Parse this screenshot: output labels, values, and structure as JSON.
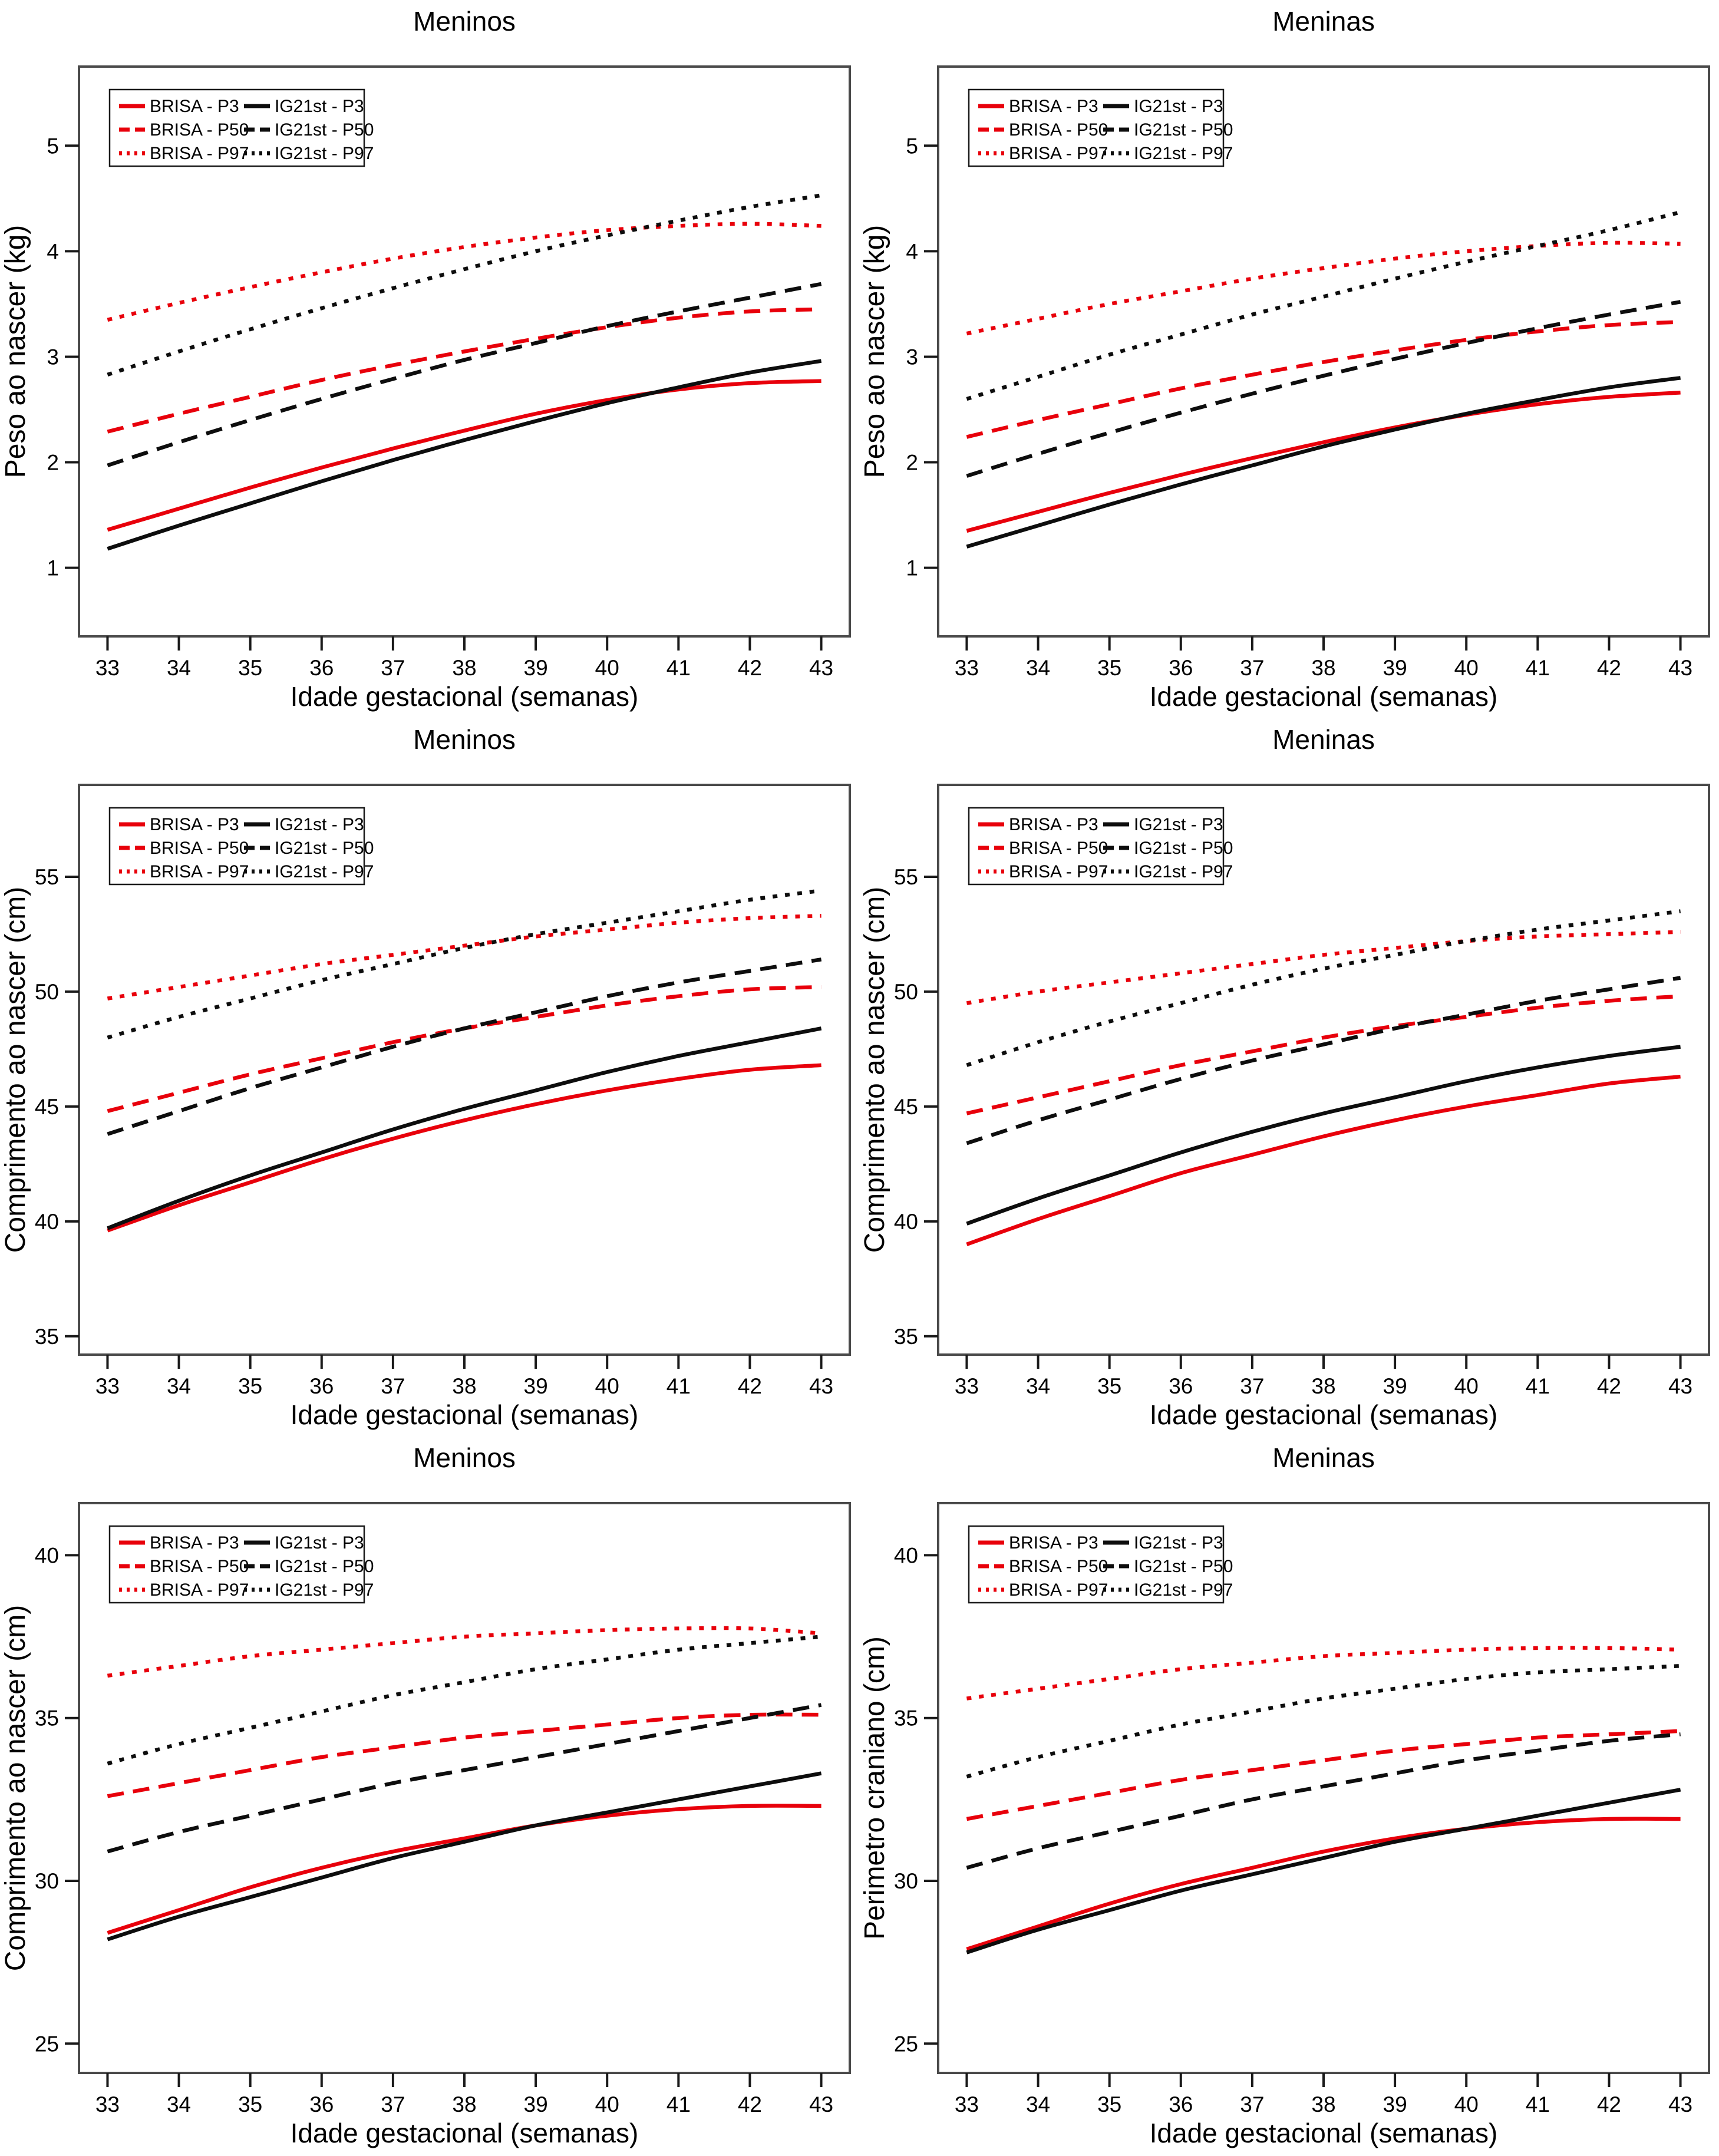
{
  "figure": {
    "xlabel": "Idade gestacional (semanas)",
    "x_ticks": [
      33,
      34,
      35,
      36,
      37,
      38,
      39,
      40,
      41,
      42,
      43
    ],
    "colors": {
      "brisa": "#e8000b",
      "ig21st": "#0d0d0d",
      "axis": "#4a4a4a",
      "background": "#ffffff"
    },
    "legend": {
      "position": "top-left",
      "columns": [
        [
          {
            "label": "BRISA - P3",
            "color": "#e8000b",
            "dash": "solid"
          },
          {
            "label": "BRISA - P50",
            "color": "#e8000b",
            "dash": "dashed"
          },
          {
            "label": "BRISA - P97",
            "color": "#e8000b",
            "dash": "dotted"
          }
        ],
        [
          {
            "label": "IG21st - P3",
            "color": "#0d0d0d",
            "dash": "solid"
          },
          {
            "label": "IG21st - P50",
            "color": "#0d0d0d",
            "dash": "dashed"
          },
          {
            "label": "IG21st - P97",
            "color": "#0d0d0d",
            "dash": "dotted"
          }
        ]
      ]
    }
  },
  "chart_data": [
    {
      "type": "line",
      "title": "Meninos",
      "ylabel": "Peso ao nascer (kg)",
      "xlabel": "Idade gestacional (semanas)",
      "x": [
        33,
        34,
        35,
        36,
        37,
        38,
        39,
        40,
        41,
        42,
        43
      ],
      "xlim": [
        32.6,
        43.4
      ],
      "ylim": [
        0.35,
        5.75
      ],
      "yticks": [
        1,
        2,
        3,
        4,
        5
      ],
      "grid": false,
      "series": [
        {
          "name": "BRISA - P3",
          "color": "#e8000b",
          "dash": "solid",
          "values": [
            1.36,
            1.56,
            1.76,
            1.95,
            2.13,
            2.3,
            2.46,
            2.59,
            2.69,
            2.75,
            2.77
          ]
        },
        {
          "name": "BRISA - P50",
          "color": "#e8000b",
          "dash": "dashed",
          "values": [
            2.29,
            2.46,
            2.62,
            2.78,
            2.92,
            3.05,
            3.17,
            3.28,
            3.37,
            3.43,
            3.45
          ]
        },
        {
          "name": "BRISA - P97",
          "color": "#e8000b",
          "dash": "dotted",
          "values": [
            3.35,
            3.51,
            3.66,
            3.8,
            3.93,
            4.04,
            4.13,
            4.2,
            4.24,
            4.26,
            4.24
          ]
        },
        {
          "name": "IG21st - P3",
          "color": "#0d0d0d",
          "dash": "solid",
          "values": [
            1.18,
            1.4,
            1.61,
            1.82,
            2.02,
            2.21,
            2.39,
            2.56,
            2.71,
            2.85,
            2.96
          ]
        },
        {
          "name": "IG21st - P50",
          "color": "#0d0d0d",
          "dash": "dashed",
          "values": [
            1.97,
            2.19,
            2.4,
            2.6,
            2.79,
            2.97,
            3.13,
            3.29,
            3.43,
            3.56,
            3.69
          ]
        },
        {
          "name": "IG21st - P97",
          "color": "#0d0d0d",
          "dash": "dotted",
          "values": [
            2.83,
            3.05,
            3.26,
            3.46,
            3.65,
            3.83,
            4.0,
            4.15,
            4.29,
            4.42,
            4.53
          ]
        }
      ]
    },
    {
      "type": "line",
      "title": "Meninas",
      "ylabel": "Peso ao nascer (kg)",
      "xlabel": "Idade gestacional (semanas)",
      "x": [
        33,
        34,
        35,
        36,
        37,
        38,
        39,
        40,
        41,
        42,
        43
      ],
      "xlim": [
        32.6,
        43.4
      ],
      "ylim": [
        0.35,
        5.75
      ],
      "yticks": [
        1,
        2,
        3,
        4,
        5
      ],
      "grid": false,
      "series": [
        {
          "name": "BRISA - P3",
          "color": "#e8000b",
          "dash": "solid",
          "values": [
            1.35,
            1.53,
            1.71,
            1.88,
            2.04,
            2.19,
            2.33,
            2.45,
            2.55,
            2.62,
            2.66
          ]
        },
        {
          "name": "BRISA - P50",
          "color": "#e8000b",
          "dash": "dashed",
          "values": [
            2.24,
            2.4,
            2.55,
            2.7,
            2.83,
            2.95,
            3.06,
            3.16,
            3.24,
            3.3,
            3.33
          ]
        },
        {
          "name": "BRISA - P97",
          "color": "#e8000b",
          "dash": "dotted",
          "values": [
            3.22,
            3.36,
            3.5,
            3.62,
            3.74,
            3.84,
            3.93,
            4.0,
            4.05,
            4.08,
            4.07
          ]
        },
        {
          "name": "IG21st - P3",
          "color": "#0d0d0d",
          "dash": "solid",
          "values": [
            1.2,
            1.4,
            1.6,
            1.79,
            1.97,
            2.15,
            2.31,
            2.46,
            2.59,
            2.71,
            2.8
          ]
        },
        {
          "name": "IG21st - P50",
          "color": "#0d0d0d",
          "dash": "dashed",
          "values": [
            1.87,
            2.08,
            2.28,
            2.47,
            2.65,
            2.82,
            2.98,
            3.13,
            3.27,
            3.4,
            3.52
          ]
        },
        {
          "name": "IG21st - P97",
          "color": "#0d0d0d",
          "dash": "dotted",
          "values": [
            2.6,
            2.81,
            3.02,
            3.21,
            3.4,
            3.57,
            3.74,
            3.9,
            4.05,
            4.2,
            4.37
          ]
        }
      ]
    },
    {
      "type": "line",
      "title": "Meninos",
      "ylabel": "Comprimento ao nascer (cm)",
      "xlabel": "Idade gestacional (semanas)",
      "x": [
        33,
        34,
        35,
        36,
        37,
        38,
        39,
        40,
        41,
        42,
        43
      ],
      "xlim": [
        32.6,
        43.4
      ],
      "ylim": [
        34.2,
        59.0
      ],
      "yticks": [
        35,
        40,
        45,
        50,
        55
      ],
      "grid": false,
      "series": [
        {
          "name": "BRISA - P3",
          "color": "#e8000b",
          "dash": "solid",
          "values": [
            39.6,
            40.7,
            41.7,
            42.7,
            43.6,
            44.4,
            45.1,
            45.7,
            46.2,
            46.6,
            46.8
          ]
        },
        {
          "name": "BRISA - P50",
          "color": "#e8000b",
          "dash": "dashed",
          "values": [
            44.8,
            45.6,
            46.4,
            47.1,
            47.8,
            48.4,
            48.9,
            49.4,
            49.8,
            50.1,
            50.2
          ]
        },
        {
          "name": "BRISA - P97",
          "color": "#e8000b",
          "dash": "dotted",
          "values": [
            49.7,
            50.2,
            50.7,
            51.2,
            51.6,
            52.0,
            52.4,
            52.7,
            53.0,
            53.2,
            53.3
          ]
        },
        {
          "name": "IG21st - P3",
          "color": "#0d0d0d",
          "dash": "solid",
          "values": [
            39.7,
            40.9,
            42.0,
            43.0,
            44.0,
            44.9,
            45.7,
            46.5,
            47.2,
            47.8,
            48.4
          ]
        },
        {
          "name": "IG21st - P50",
          "color": "#0d0d0d",
          "dash": "dashed",
          "values": [
            43.8,
            44.8,
            45.8,
            46.7,
            47.6,
            48.4,
            49.1,
            49.8,
            50.4,
            50.9,
            51.4
          ]
        },
        {
          "name": "IG21st - P97",
          "color": "#0d0d0d",
          "dash": "dotted",
          "values": [
            48.0,
            48.9,
            49.7,
            50.5,
            51.2,
            51.9,
            52.5,
            53.0,
            53.5,
            54.0,
            54.4
          ]
        }
      ]
    },
    {
      "type": "line",
      "title": "Meninas",
      "ylabel": "Comprimento ao nascer (cm)",
      "xlabel": "Idade gestacional (semanas)",
      "x": [
        33,
        34,
        35,
        36,
        37,
        38,
        39,
        40,
        41,
        42,
        43
      ],
      "xlim": [
        32.6,
        43.4
      ],
      "ylim": [
        34.2,
        59.0
      ],
      "yticks": [
        35,
        40,
        45,
        50,
        55
      ],
      "grid": false,
      "series": [
        {
          "name": "BRISA - P3",
          "color": "#e8000b",
          "dash": "solid",
          "values": [
            39.0,
            40.1,
            41.1,
            42.1,
            42.9,
            43.7,
            44.4,
            45.0,
            45.5,
            46.0,
            46.3
          ]
        },
        {
          "name": "BRISA - P50",
          "color": "#e8000b",
          "dash": "dashed",
          "values": [
            44.7,
            45.4,
            46.1,
            46.8,
            47.4,
            48.0,
            48.5,
            48.9,
            49.3,
            49.6,
            49.8
          ]
        },
        {
          "name": "BRISA - P97",
          "color": "#e8000b",
          "dash": "dotted",
          "values": [
            49.5,
            50.0,
            50.4,
            50.8,
            51.2,
            51.6,
            51.9,
            52.2,
            52.4,
            52.5,
            52.6
          ]
        },
        {
          "name": "IG21st - P3",
          "color": "#0d0d0d",
          "dash": "solid",
          "values": [
            39.9,
            41.0,
            42.0,
            43.0,
            43.9,
            44.7,
            45.4,
            46.1,
            46.7,
            47.2,
            47.6
          ]
        },
        {
          "name": "IG21st - P50",
          "color": "#0d0d0d",
          "dash": "dashed",
          "values": [
            43.4,
            44.4,
            45.3,
            46.2,
            47.0,
            47.7,
            48.4,
            49.0,
            49.6,
            50.1,
            50.6
          ]
        },
        {
          "name": "IG21st - P97",
          "color": "#0d0d0d",
          "dash": "dotted",
          "values": [
            46.8,
            47.8,
            48.7,
            49.5,
            50.3,
            51.0,
            51.6,
            52.2,
            52.7,
            53.1,
            53.5
          ]
        }
      ]
    },
    {
      "type": "line",
      "title": "Meninos",
      "ylabel": "Comprimento ao nascer (cm)",
      "xlabel": "Idade gestacional (semanas)",
      "x": [
        33,
        34,
        35,
        36,
        37,
        38,
        39,
        40,
        41,
        42,
        43
      ],
      "xlim": [
        32.6,
        43.4
      ],
      "ylim": [
        24.1,
        41.6
      ],
      "yticks": [
        25,
        30,
        35,
        40
      ],
      "grid": false,
      "series": [
        {
          "name": "BRISA - P3",
          "color": "#e8000b",
          "dash": "solid",
          "values": [
            28.4,
            29.1,
            29.8,
            30.4,
            30.9,
            31.3,
            31.7,
            32.0,
            32.2,
            32.3,
            32.3
          ]
        },
        {
          "name": "BRISA - P50",
          "color": "#e8000b",
          "dash": "dashed",
          "values": [
            32.6,
            33.0,
            33.4,
            33.8,
            34.1,
            34.4,
            34.6,
            34.8,
            35.0,
            35.1,
            35.1
          ]
        },
        {
          "name": "BRISA - P97",
          "color": "#e8000b",
          "dash": "dotted",
          "values": [
            36.3,
            36.6,
            36.9,
            37.1,
            37.3,
            37.5,
            37.6,
            37.7,
            37.75,
            37.75,
            37.6
          ]
        },
        {
          "name": "IG21st - P3",
          "color": "#0d0d0d",
          "dash": "solid",
          "values": [
            28.2,
            28.9,
            29.5,
            30.1,
            30.7,
            31.2,
            31.7,
            32.1,
            32.5,
            32.9,
            33.3
          ]
        },
        {
          "name": "IG21st - P50",
          "color": "#0d0d0d",
          "dash": "dashed",
          "values": [
            30.9,
            31.5,
            32.0,
            32.5,
            33.0,
            33.4,
            33.8,
            34.2,
            34.6,
            35.0,
            35.4
          ]
        },
        {
          "name": "IG21st - P97",
          "color": "#0d0d0d",
          "dash": "dotted",
          "values": [
            33.6,
            34.2,
            34.7,
            35.2,
            35.7,
            36.1,
            36.5,
            36.8,
            37.1,
            37.3,
            37.5
          ]
        }
      ]
    },
    {
      "type": "line",
      "title": "Meninas",
      "ylabel": "Perimetro craniano (cm)",
      "xlabel": "Idade gestacional (semanas)",
      "x": [
        33,
        34,
        35,
        36,
        37,
        38,
        39,
        40,
        41,
        42,
        43
      ],
      "xlim": [
        32.6,
        43.4
      ],
      "ylim": [
        24.1,
        41.6
      ],
      "yticks": [
        25,
        30,
        35,
        40
      ],
      "grid": false,
      "series": [
        {
          "name": "BRISA - P3",
          "color": "#e8000b",
          "dash": "solid",
          "values": [
            27.9,
            28.6,
            29.3,
            29.9,
            30.4,
            30.9,
            31.3,
            31.6,
            31.8,
            31.9,
            31.9
          ]
        },
        {
          "name": "BRISA - P50",
          "color": "#e8000b",
          "dash": "dashed",
          "values": [
            31.9,
            32.3,
            32.7,
            33.1,
            33.4,
            33.7,
            34.0,
            34.2,
            34.4,
            34.5,
            34.6
          ]
        },
        {
          "name": "BRISA - P97",
          "color": "#e8000b",
          "dash": "dotted",
          "values": [
            35.6,
            35.9,
            36.2,
            36.5,
            36.7,
            36.9,
            37.0,
            37.1,
            37.15,
            37.15,
            37.1
          ]
        },
        {
          "name": "IG21st - P3",
          "color": "#0d0d0d",
          "dash": "solid",
          "values": [
            27.8,
            28.5,
            29.1,
            29.7,
            30.2,
            30.7,
            31.2,
            31.6,
            32.0,
            32.4,
            32.8
          ]
        },
        {
          "name": "IG21st - P50",
          "color": "#0d0d0d",
          "dash": "dashed",
          "values": [
            30.4,
            31.0,
            31.5,
            32.0,
            32.5,
            32.9,
            33.3,
            33.7,
            34.0,
            34.3,
            34.5
          ]
        },
        {
          "name": "IG21st - P97",
          "color": "#0d0d0d",
          "dash": "dotted",
          "values": [
            33.2,
            33.8,
            34.3,
            34.8,
            35.2,
            35.6,
            35.9,
            36.2,
            36.4,
            36.5,
            36.6
          ]
        }
      ]
    }
  ]
}
